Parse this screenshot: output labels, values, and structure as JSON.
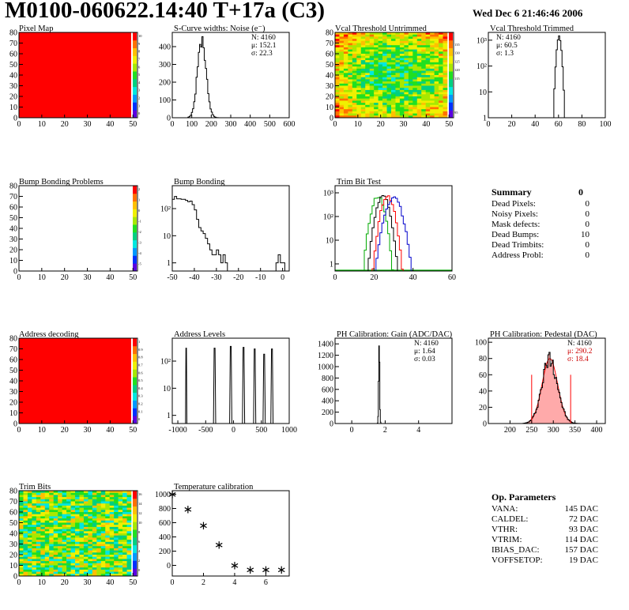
{
  "header": {
    "title": "M0100-060622.14:40 T+17a (C3)",
    "date": "Wed Dec  6 21:46:46 2006"
  },
  "colors": {
    "map_red": "#ff0000",
    "palette": [
      "#5a00e0",
      "#0030ff",
      "#0098ff",
      "#00e8e0",
      "#00d080",
      "#20e020",
      "#a8e800",
      "#f0f000",
      "#ffc000",
      "#ff7000",
      "#ff0000"
    ],
    "trim_lines": [
      "#00aa00",
      "#000000",
      "#ff0000",
      "#0000cc"
    ],
    "pedestal_fill": "#ffaaaa",
    "pedestal_red": "#ff0000",
    "pedestal_stat_red": "#cc0000"
  },
  "summary": {
    "title": "Summary",
    "title_value": "0",
    "items": [
      {
        "label": "Dead Pixels:",
        "value": "0"
      },
      {
        "label": "Noisy Pixels:",
        "value": "0"
      },
      {
        "label": "Mask defects:",
        "value": "0"
      },
      {
        "label": "Dead Bumps:",
        "value": "10"
      },
      {
        "label": "Dead Trimbits:",
        "value": "0"
      },
      {
        "label": "Address Probl:",
        "value": "0"
      }
    ]
  },
  "op_params": {
    "title": "Op. Parameters",
    "items": [
      {
        "label": "VANA:",
        "value": "145 DAC"
      },
      {
        "label": "CALDEL:",
        "value": "72 DAC"
      },
      {
        "label": "VTHR:",
        "value": "93 DAC"
      },
      {
        "label": "VTRIM:",
        "value": "114 DAC"
      },
      {
        "label": "IBIAS_DAC:",
        "value": "157 DAC"
      },
      {
        "label": "VOFFSETOP:",
        "value": "19 DAC"
      }
    ]
  },
  "chart_data": [
    {
      "id": "pixel-map",
      "type": "heatmap",
      "title": "Pixel Map",
      "xlim": [
        0,
        52
      ],
      "ylim": [
        0,
        80
      ],
      "xticks": [
        0,
        10,
        20,
        30,
        40,
        50
      ],
      "yticks": [
        0,
        10,
        20,
        30,
        40,
        50,
        60,
        70,
        80
      ],
      "fill": "uniform",
      "value": 10,
      "zticks": [
        "10",
        "9",
        "8",
        "7",
        "6",
        "5",
        "4",
        "3",
        "2",
        "1",
        "0"
      ]
    },
    {
      "id": "scurve",
      "type": "histogram",
      "title": "S-Curve widths: Noise (e⁻)",
      "xlim": [
        0,
        600
      ],
      "ylim": [
        0,
        480
      ],
      "xticks": [
        0,
        100,
        200,
        300,
        400,
        500,
        600
      ],
      "yticks": [
        0,
        100,
        200,
        300,
        400
      ],
      "stats": [
        "N: 4160",
        "μ: 152.1",
        "σ: 22.3"
      ],
      "hist": {
        "gauss": [
          {
            "mu": 152,
            "sigma": 22,
            "amp": 440
          }
        ],
        "from": 80,
        "to": 240,
        "step": 6
      }
    },
    {
      "id": "vcal-untrimmed",
      "type": "heatmap",
      "title": "Vcal Threshold Untrimmed",
      "xlim": [
        0,
        52
      ],
      "ylim": [
        0,
        80
      ],
      "xticks": [
        0,
        10,
        20,
        30,
        40,
        50
      ],
      "yticks": [
        0,
        10,
        20,
        30,
        40,
        50,
        60,
        70,
        80
      ],
      "fill": "noise-cool-center",
      "zticks": [
        "",
        "135",
        "130",
        "125",
        "120",
        "115",
        "",
        "",
        "",
        "95"
      ]
    },
    {
      "id": "vcal-trimmed",
      "type": "histogram",
      "title": "Vcal Threshold Trimmed",
      "log": true,
      "xlim": [
        0,
        100
      ],
      "ylim": [
        1,
        2000
      ],
      "xticks": [
        0,
        20,
        40,
        60,
        80,
        100
      ],
      "yticks": [
        1,
        10,
        100,
        1000
      ],
      "ytickLabels": [
        "1",
        "10",
        "10²",
        "10³"
      ],
      "stats": [
        "N: 4160",
        "μ: 60.5",
        "σ: 1.3"
      ],
      "hist": {
        "gauss": [
          {
            "mu": 60.5,
            "sigma": 1.3,
            "amp": 1400
          }
        ],
        "from": 54,
        "to": 67,
        "step": 1
      }
    },
    {
      "id": "bump-problems",
      "type": "heatmap",
      "title": "Bump Bonding Problems",
      "xlim": [
        0,
        52
      ],
      "ylim": [
        0,
        80
      ],
      "xticks": [
        0,
        10,
        20,
        30,
        40,
        50
      ],
      "yticks": [
        0,
        10,
        20,
        30,
        40,
        50,
        60,
        70,
        80
      ],
      "fill": "empty",
      "zticks": [
        "2",
        "1",
        "0",
        "-1",
        "-2",
        "-3",
        "-4",
        "-5"
      ]
    },
    {
      "id": "bump-bonding",
      "type": "histogram",
      "title": "Bump Bonding",
      "log": true,
      "xlim": [
        -50,
        3
      ],
      "ylim": [
        0.5,
        700
      ],
      "xticks": [
        -50,
        -40,
        -30,
        -20,
        -10,
        0
      ],
      "yticks": [
        1,
        10,
        100
      ],
      "ytickLabels": [
        "1",
        "10",
        "10²"
      ],
      "bins": {
        "x0": -50,
        "w": 1,
        "values": [
          220,
          280,
          230,
          230,
          220,
          220,
          200,
          180,
          190,
          140,
          90,
          40,
          20,
          15,
          12,
          8,
          5,
          3,
          2,
          2,
          3,
          2,
          1,
          2,
          1,
          0,
          0,
          0,
          0,
          0,
          0,
          0,
          0,
          0,
          0,
          0,
          0,
          0,
          0,
          0,
          0,
          0,
          0,
          0,
          0,
          0,
          0,
          1,
          2,
          1,
          1,
          0,
          0
        ]
      }
    },
    {
      "id": "trim-bit",
      "type": "histogram",
      "title": "Trim Bit Test",
      "log": true,
      "xlim": [
        0,
        60
      ],
      "ylim": [
        0.5,
        2000
      ],
      "xticks": [
        0,
        20,
        40,
        60
      ],
      "yticks": [
        1,
        10,
        100,
        1000
      ],
      "ytickLabels": [
        "1",
        "10",
        "10²",
        "10³"
      ],
      "multi": [
        {
          "mu": 22,
          "sigma": 2.0,
          "amp": 700
        },
        {
          "mu": 24.5,
          "sigma": 2.0,
          "amp": 800
        },
        {
          "mu": 27,
          "sigma": 2.0,
          "amp": 700
        },
        {
          "mu": 30,
          "sigma": 2.5,
          "amp": 600
        }
      ],
      "range": [
        15,
        40
      ]
    },
    {
      "id": "addr-decoding",
      "type": "heatmap",
      "title": "Address decoding",
      "xlim": [
        0,
        52
      ],
      "ylim": [
        0,
        80
      ],
      "xticks": [
        0,
        10,
        20,
        30,
        40,
        50
      ],
      "yticks": [
        0,
        10,
        20,
        30,
        40,
        50,
        60,
        70,
        80
      ],
      "fill": "uniform",
      "value": 1,
      "zticks": [
        "1",
        "0.9",
        "0.8",
        "0.7",
        "0.6",
        "0.5",
        "0.4",
        "0.3",
        "0.2",
        "0.1",
        "0"
      ]
    },
    {
      "id": "addr-levels",
      "type": "histogram",
      "title": "Address Levels",
      "log": true,
      "xlim": [
        -1100,
        1000
      ],
      "ylim": [
        0.5,
        700
      ],
      "xticks": [
        -1000,
        -500,
        0,
        500,
        1000
      ],
      "yticks": [
        1,
        10,
        100
      ],
      "ytickLabels": [
        "1",
        "10",
        "10²"
      ],
      "peaks": [
        {
          "x": -850,
          "amp": 300,
          "w": 12
        },
        {
          "x": -340,
          "amp": 300,
          "w": 20
        },
        {
          "x": -50,
          "amp": 350,
          "w": 20
        },
        {
          "x": 180,
          "amp": 320,
          "w": 20
        },
        {
          "x": 380,
          "amp": 280,
          "w": 20
        },
        {
          "x": 550,
          "amp": 180,
          "w": 20
        },
        {
          "x": 690,
          "amp": 280,
          "w": 20
        }
      ]
    },
    {
      "id": "ph-gain",
      "type": "histogram",
      "title": "PH Calibration: Gain (ADC/DAC)",
      "xlim": [
        -1,
        6
      ],
      "ylim": [
        0,
        1500
      ],
      "xticks": [
        0,
        2,
        4
      ],
      "yticks": [
        0,
        200,
        400,
        600,
        800,
        1000,
        1200,
        1400
      ],
      "stats": [
        "N: 4160",
        "μ: 1.64",
        "σ: 0.03"
      ],
      "hist": {
        "gauss": [
          {
            "mu": 1.64,
            "sigma": 0.03,
            "amp": 1400
          }
        ],
        "from": 1.5,
        "to": 1.8,
        "step": 0.03
      }
    },
    {
      "id": "ph-pedestal",
      "type": "histogram",
      "title": "PH Calibration: Pedestal (DAC)",
      "xlim": [
        150,
        420
      ],
      "ylim": [
        0,
        105
      ],
      "xticks": [
        200,
        250,
        300,
        350,
        400
      ],
      "yticks": [
        0,
        20,
        40,
        60,
        80,
        100
      ],
      "stats": [
        "N: 4160",
        "μ: 290.2",
        "σ: 18.4"
      ],
      "pedestal": {
        "mu": 292,
        "sigma": 18,
        "amp": 80,
        "lines": [
          250,
          340
        ]
      }
    },
    {
      "id": "trim-bits",
      "type": "heatmap",
      "title": "Trim Bits",
      "xlim": [
        0,
        52
      ],
      "ylim": [
        0,
        80
      ],
      "xticks": [
        0,
        10,
        20,
        30,
        40,
        50
      ],
      "yticks": [
        0,
        10,
        20,
        30,
        40,
        50,
        60,
        70,
        80
      ],
      "fill": "noise-warm",
      "zticks": [
        "16",
        "14",
        "12",
        "10",
        "8",
        "6",
        "4",
        "2",
        "0"
      ]
    },
    {
      "id": "temp-calib",
      "type": "scatter",
      "title": "Temperature calibration",
      "xlim": [
        0,
        7.5
      ],
      "ylim": [
        -150,
        1050
      ],
      "xticks": [
        0,
        2,
        4,
        6
      ],
      "yticks": [
        0,
        200,
        400,
        600,
        800,
        1000
      ],
      "x": [
        0,
        1,
        2,
        3,
        4,
        5,
        6,
        7
      ],
      "y": [
        1000,
        790,
        560,
        290,
        0,
        -60,
        -60,
        -60
      ]
    }
  ]
}
